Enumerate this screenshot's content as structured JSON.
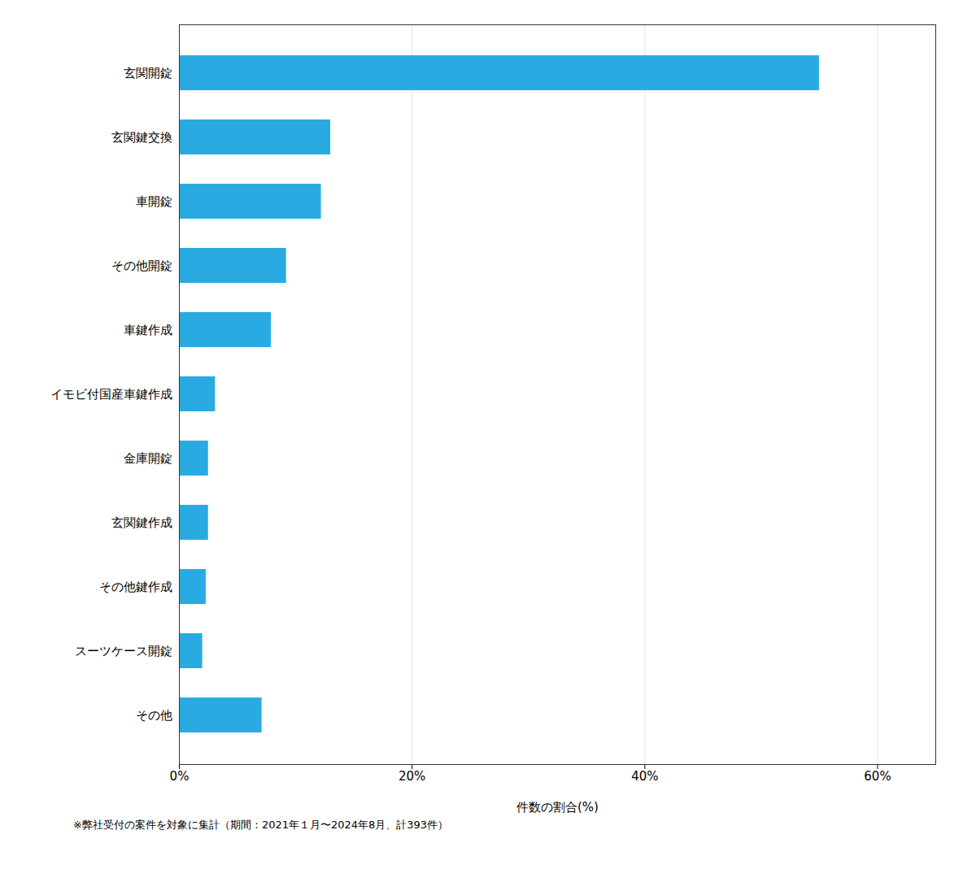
{
  "chart_data": {
    "type": "bar",
    "orientation": "horizontal",
    "categories": [
      "その他",
      "スーツケース開錠",
      "その他鍵作成",
      "玄関鍵作成",
      "金庫開錠",
      "イモビ付国産車鍵作成",
      "車鍵作成",
      "その他開錠",
      "車開錠",
      "玄関鍵交換",
      "玄関開錠"
    ],
    "values": [
      7.1,
      2.0,
      2.3,
      2.5,
      2.5,
      3.1,
      7.9,
      9.2,
      12.2,
      13.0,
      55.0
    ],
    "color": "#29ABE2",
    "xlabel": "件数の割合(%)",
    "xlim": [
      0,
      65
    ],
    "xticks": [
      {
        "value": 0,
        "label": "0%"
      },
      {
        "value": 20,
        "label": "20%"
      },
      {
        "value": 40,
        "label": "40%"
      },
      {
        "value": 60,
        "label": "60%"
      }
    ],
    "grid": true,
    "footnote": "※弊社受付の案件を対象に集計（期間：2021年１月〜2024年8月、計393件）"
  }
}
